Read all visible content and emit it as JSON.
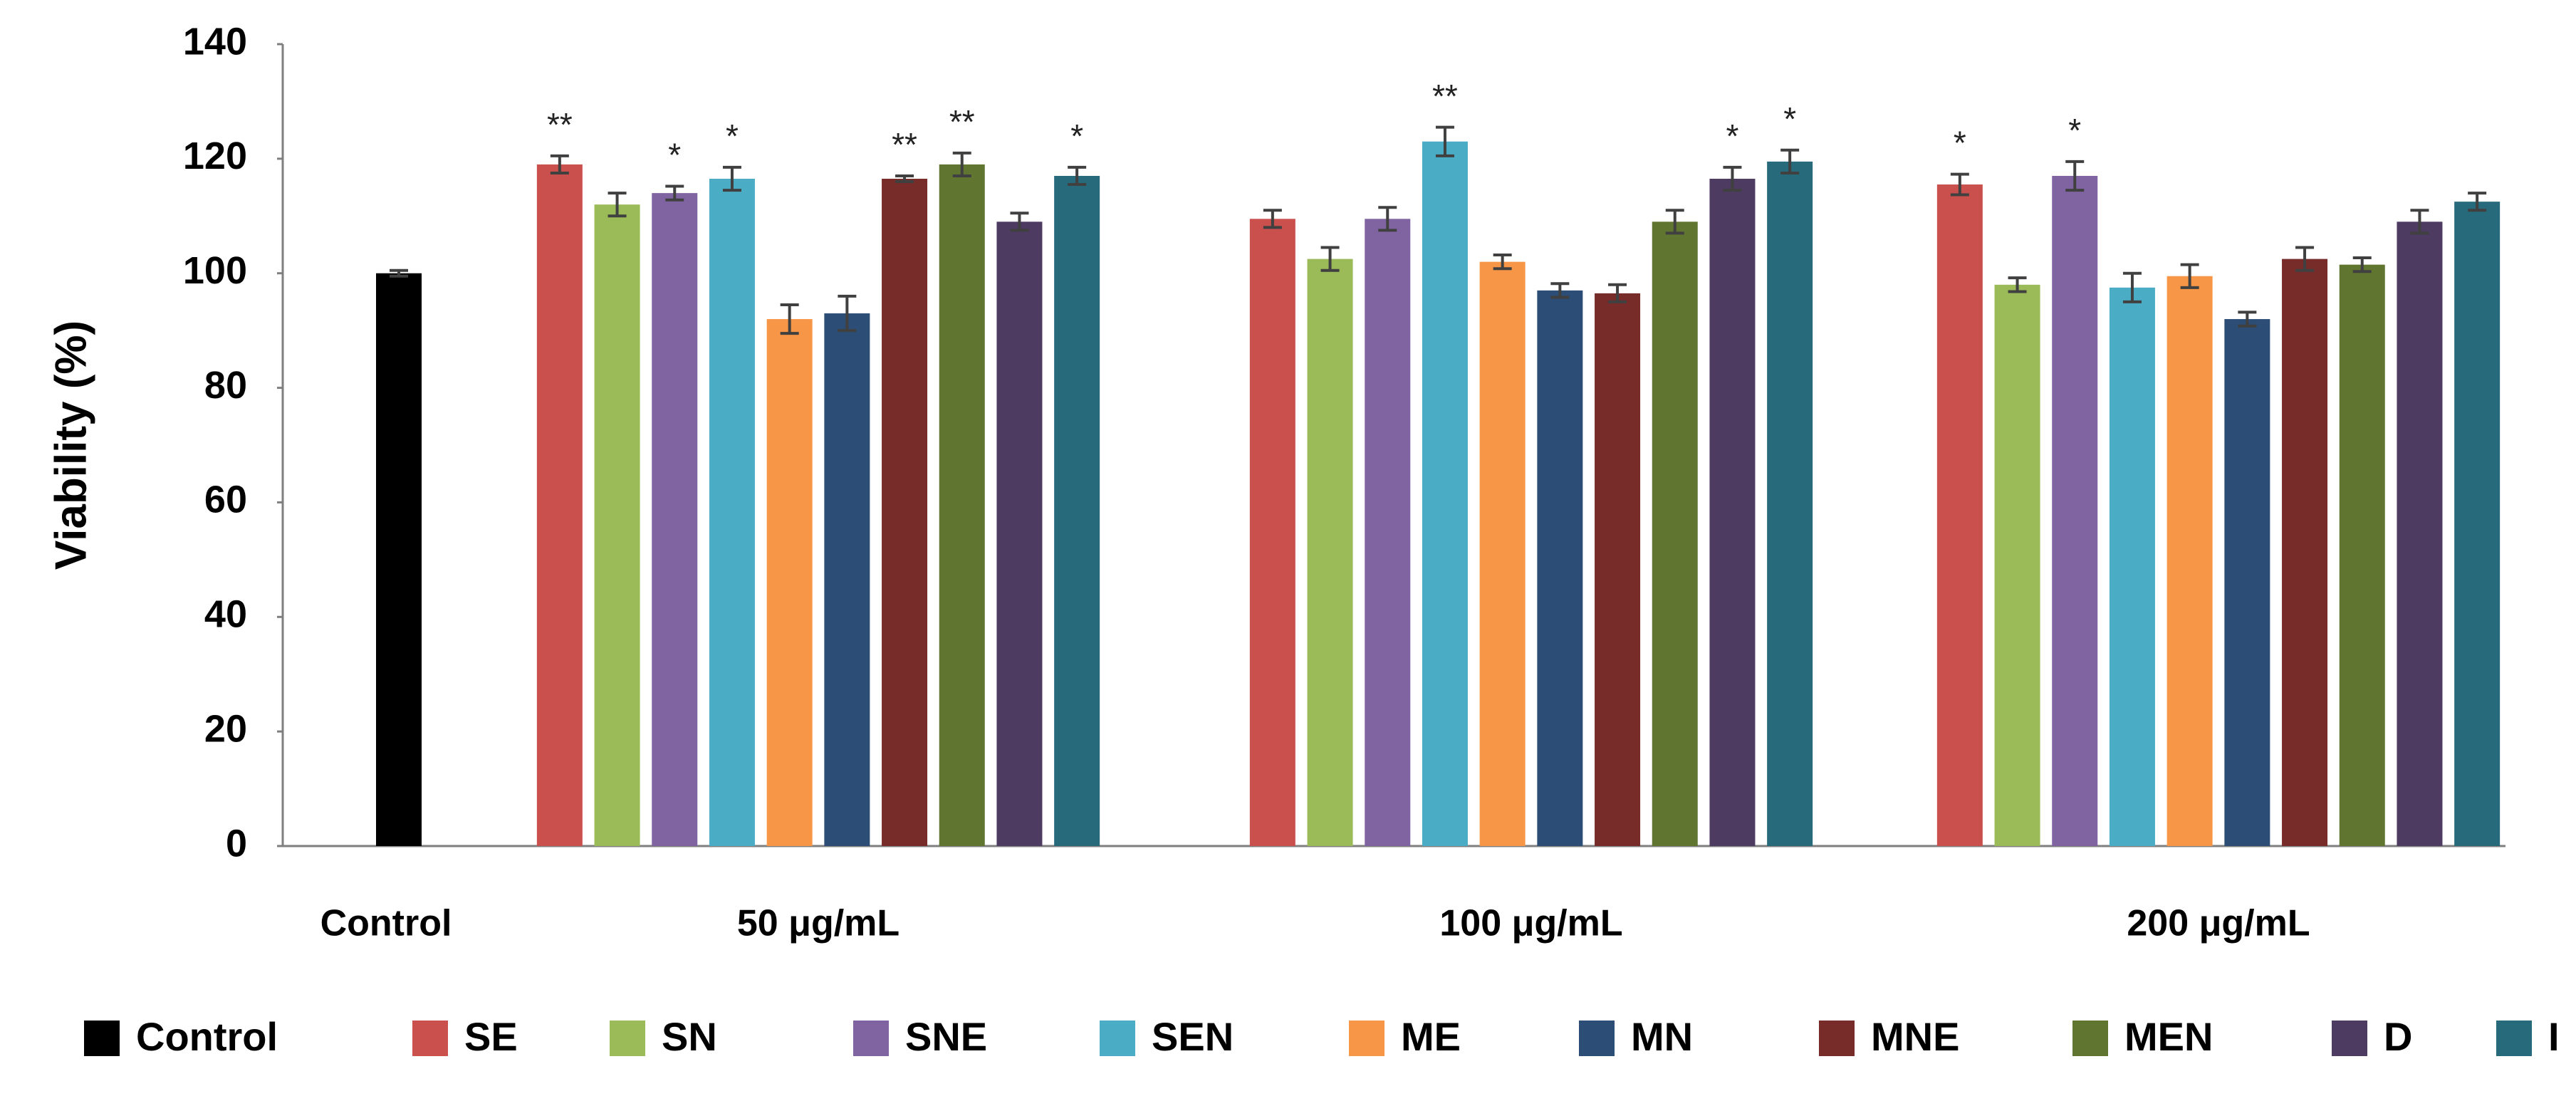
{
  "chart_data": {
    "type": "bar",
    "y_label": "Viability  (%)",
    "categories": [
      "Control",
      "50 μg/mL",
      "100 μg/mL",
      "200 μg/mL"
    ],
    "ylim": [
      0,
      140
    ],
    "yticks": [
      0,
      20,
      40,
      60,
      80,
      100,
      120,
      140
    ],
    "grid": false,
    "legend": "bottom",
    "series": [
      {
        "name": "Control",
        "color": "#000000",
        "values": [
          100,
          null,
          null,
          null
        ],
        "errors": [
          0.5,
          null,
          null,
          null
        ],
        "annotations": [
          null,
          null,
          null,
          null
        ]
      },
      {
        "name": "SE",
        "color": "#c9504d",
        "values": [
          null,
          119,
          109.5,
          115.5
        ],
        "errors": [
          null,
          1.5,
          1.5,
          1.8
        ],
        "annotations": [
          null,
          "**",
          null,
          "*"
        ]
      },
      {
        "name": "SN",
        "color": "#9bbb59",
        "values": [
          null,
          112,
          102.5,
          98
        ],
        "errors": [
          null,
          2,
          2,
          1.2
        ],
        "annotations": [
          null,
          null,
          null,
          null
        ]
      },
      {
        "name": "SNE",
        "color": "#8064a2",
        "values": [
          null,
          114,
          109.5,
          117
        ],
        "errors": [
          null,
          1.2,
          2,
          2.5
        ],
        "annotations": [
          null,
          "*",
          null,
          "*"
        ]
      },
      {
        "name": "SEN",
        "color": "#4bacc6",
        "values": [
          null,
          116.5,
          123,
          97.5
        ],
        "errors": [
          null,
          2,
          2.5,
          2.5
        ],
        "annotations": [
          null,
          "*",
          "**",
          null
        ]
      },
      {
        "name": "ME",
        "color": "#f79646",
        "values": [
          null,
          92,
          102,
          99.5
        ],
        "errors": [
          null,
          2.5,
          1.2,
          2
        ],
        "annotations": [
          null,
          null,
          null,
          null
        ]
      },
      {
        "name": "MN",
        "color": "#2c4d75",
        "values": [
          null,
          93,
          97,
          92
        ],
        "errors": [
          null,
          3,
          1.2,
          1.2
        ],
        "annotations": [
          null,
          null,
          null,
          null
        ]
      },
      {
        "name": "MNE",
        "color": "#772c2a",
        "values": [
          null,
          116.5,
          96.5,
          102.5
        ],
        "errors": [
          null,
          0.5,
          1.5,
          2
        ],
        "annotations": [
          null,
          "**",
          null,
          null
        ]
      },
      {
        "name": "MEN",
        "color": "#5f7530",
        "values": [
          null,
          119,
          109,
          101.5
        ],
        "errors": [
          null,
          2,
          2,
          1.2
        ],
        "annotations": [
          null,
          "**",
          null,
          null
        ]
      },
      {
        "name": "D",
        "color": "#4d3b62",
        "values": [
          null,
          109,
          116.5,
          109
        ],
        "errors": [
          null,
          1.5,
          2,
          2
        ],
        "annotations": [
          null,
          null,
          "*",
          null
        ]
      },
      {
        "name": "I",
        "color": "#276a7c",
        "values": [
          null,
          117,
          119.5,
          112.5
        ],
        "errors": [
          null,
          1.5,
          2,
          1.5
        ],
        "annotations": [
          null,
          "*",
          "*",
          null
        ]
      }
    ]
  }
}
